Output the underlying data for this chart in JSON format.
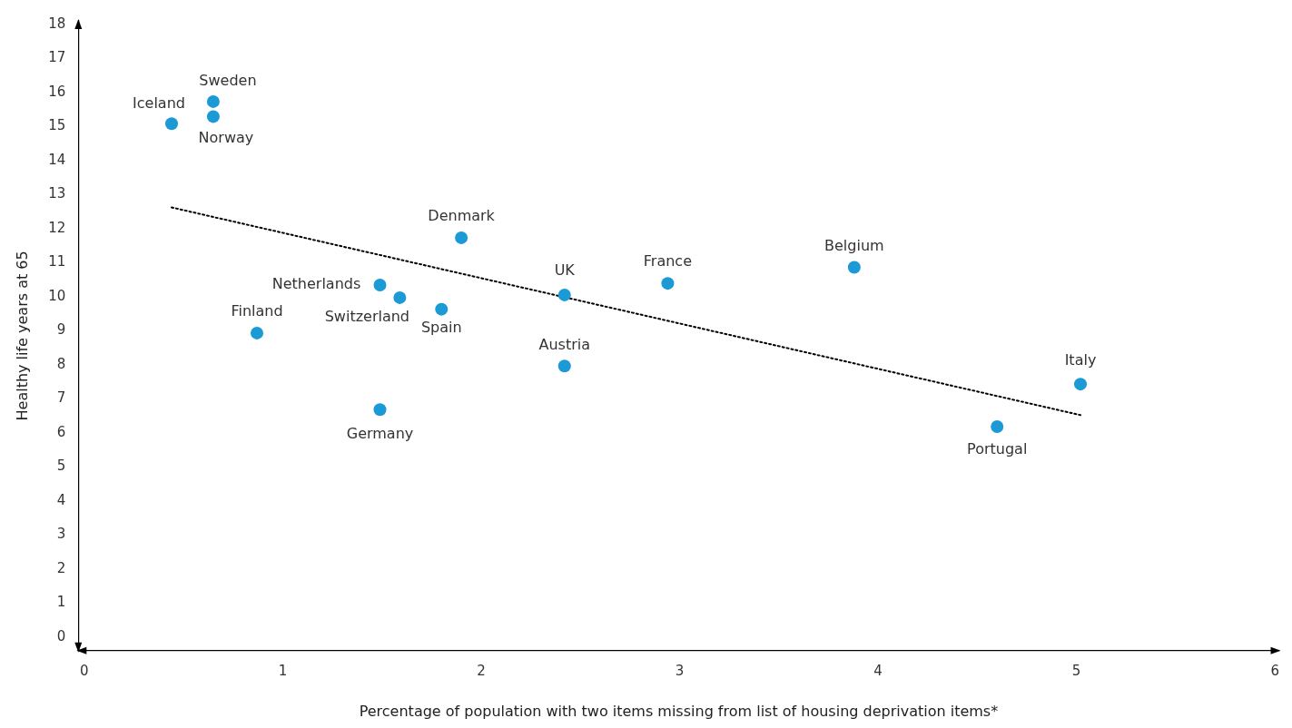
{
  "chart_data": {
    "type": "scatter",
    "xlabel": "Percentage of population with two items missing from list of housing deprivation items*",
    "ylabel": "Healthy life years at 65",
    "annotations": [
      {
        "text": "Iceland",
        "x": 0.44,
        "y": 15.08
      },
      {
        "text": "Sweden",
        "x": 0.65,
        "y": 15.73
      },
      {
        "text": "Norway",
        "x": 0.65,
        "y": 15.29
      },
      {
        "text": "Finland",
        "x": 0.87,
        "y": 8.93
      },
      {
        "text": "Netherlands",
        "x": 1.49,
        "y": 10.34
      },
      {
        "text": "Switzerland",
        "x": 1.59,
        "y": 9.97
      },
      {
        "text": "Germany",
        "x": 1.49,
        "y": 6.68
      },
      {
        "text": "Spain",
        "x": 1.8,
        "y": 9.63
      },
      {
        "text": "Denmark",
        "x": 1.9,
        "y": 11.73
      },
      {
        "text": "UK",
        "x": 2.42,
        "y": 10.05
      },
      {
        "text": "Austria",
        "x": 2.42,
        "y": 7.96
      },
      {
        "text": "France",
        "x": 2.94,
        "y": 10.39
      },
      {
        "text": "Belgium",
        "x": 3.88,
        "y": 10.86
      },
      {
        "text": "Portugal",
        "x": 4.6,
        "y": 6.18
      },
      {
        "text": "Italy",
        "x": 5.02,
        "y": 7.43
      }
    ],
    "series": [
      {
        "color": "#1b9ad6",
        "x": [
          0.44,
          0.65,
          0.65,
          0.87,
          1.49,
          1.59,
          1.49,
          1.8,
          1.9,
          2.42,
          2.42,
          2.94,
          3.88,
          4.6,
          5.02
        ],
        "values": [
          15.08,
          15.73,
          15.29,
          8.93,
          10.34,
          9.97,
          6.68,
          9.63,
          11.73,
          10.05,
          7.96,
          10.39,
          10.86,
          6.18,
          7.43
        ]
      },
      {
        "type": "line",
        "color": "#000000",
        "line_style": "dotted",
        "marker": "none",
        "x": [
          0.44,
          5.02
        ],
        "values": [
          12.62,
          6.52
        ]
      }
    ],
    "xlim": [
      -0.03,
      6.02
    ],
    "ylim": [
      -0.4,
      18.1
    ],
    "xticks": [
      0,
      1,
      2,
      3,
      4,
      5,
      6
    ],
    "yticks": [
      0,
      1,
      2,
      3,
      4,
      5,
      6,
      7,
      8,
      9,
      10,
      11,
      12,
      13,
      14,
      15,
      16,
      17,
      18
    ],
    "grid": false,
    "legend": false,
    "marker": "circle"
  }
}
